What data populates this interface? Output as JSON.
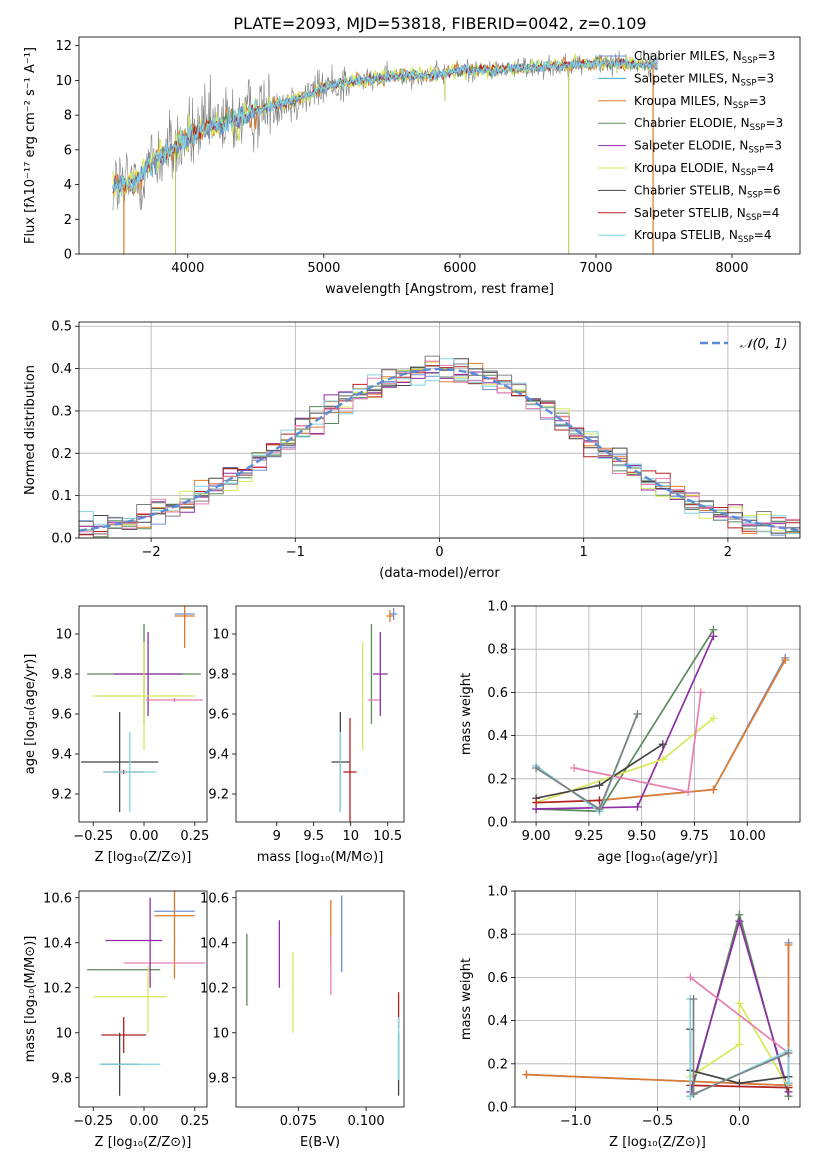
{
  "title": "PLATE=2093, MJD=53818, FIBERID=0042, z=0.109",
  "colors": {
    "Chabrier MILES": "#6f8fd6",
    "Salpeter MILES": "#4aa8c8",
    "Kroupa MILES": "#e07b2e",
    "Chabrier ELODIE": "#5c8a5c",
    "Salpeter ELODIE": "#8e2fa8",
    "Kroupa ELODIE": "#d8e85a",
    "Chabrier STELIB": "#444444",
    "Salpeter STELIB": "#b22222",
    "Kroupa STELIB": "#7fd3e0",
    "pink": "#e87fb0",
    "gray": "#808080",
    "gaussian": "#5b8dd6"
  },
  "chart_data": [
    {
      "id": "spectrum",
      "type": "line",
      "xlabel": "wavelength [Angstrom, rest frame]",
      "ylabel": "Flux [fλ10⁻¹⁷ erg cm⁻² s⁻¹ A⁻¹]",
      "xlim": [
        3200,
        8500
      ],
      "ylim": [
        0,
        12.5
      ],
      "xticks": [
        4000,
        5000,
        6000,
        7000,
        8000
      ],
      "yticks": [
        0,
        2,
        4,
        6,
        8,
        10,
        12
      ],
      "legend_position": "right",
      "legend": [
        {
          "label": "Chabrier MILES, N",
          "sub": "SSP",
          "tail": "=3",
          "color_key": "Chabrier MILES"
        },
        {
          "label": "Salpeter MILES, N",
          "sub": "SSP",
          "tail": "=3",
          "color_key": "Salpeter MILES"
        },
        {
          "label": "Kroupa MILES, N",
          "sub": "SSP",
          "tail": "=3",
          "color_key": "Kroupa MILES"
        },
        {
          "label": "Chabrier ELODIE, N",
          "sub": "SSP",
          "tail": "=3",
          "color_key": "Chabrier ELODIE"
        },
        {
          "label": "Salpeter ELODIE, N",
          "sub": "SSP",
          "tail": "=3",
          "color_key": "Salpeter ELODIE"
        },
        {
          "label": "Kroupa ELODIE, N",
          "sub": "SSP",
          "tail": "=4",
          "color_key": "Kroupa ELODIE"
        },
        {
          "label": "Chabrier STELIB, N",
          "sub": "SSP",
          "tail": "=6",
          "color_key": "Chabrier STELIB"
        },
        {
          "label": "Salpeter STELIB, N",
          "sub": "SSP",
          "tail": "=4",
          "color_key": "Salpeter STELIB"
        },
        {
          "label": "Kroupa STELIB, N",
          "sub": "SSP",
          "tail": "=4",
          "color_key": "Kroupa STELIB"
        }
      ],
      "continuum": {
        "x": [
          3450,
          3550,
          3650,
          3700,
          3800,
          3900,
          4000,
          4100,
          4200,
          4300,
          4400,
          4500,
          4600,
          4700,
          4800,
          4900,
          5000,
          5100,
          5200,
          5300,
          5400,
          5500,
          5600,
          5700,
          5800,
          5900,
          6000,
          6200,
          6400,
          6600,
          6800,
          7000,
          7200,
          7400,
          7450
        ],
        "y": [
          4.0,
          4.0,
          4.3,
          5.0,
          5.6,
          6.1,
          6.7,
          7.1,
          7.4,
          7.6,
          7.9,
          8.2,
          8.5,
          8.7,
          8.9,
          9.2,
          9.6,
          9.8,
          9.9,
          10.0,
          10.1,
          10.2,
          10.3,
          10.3,
          10.3,
          10.4,
          10.6,
          10.6,
          10.7,
          10.8,
          10.9,
          11.0,
          11.0,
          10.9,
          10.9
        ]
      },
      "dips": [
        {
          "x": 3530,
          "y": 0
        },
        {
          "x": 3910,
          "y": 0
        },
        {
          "x": 5890,
          "y": 8.8
        },
        {
          "x": 6800,
          "y": 0
        },
        {
          "x": 7420,
          "y": 0
        }
      ]
    },
    {
      "id": "residuals",
      "type": "bar",
      "xlabel": "(data-model)/error",
      "ylabel": "Normed distribution",
      "xlim": [
        -2.5,
        2.5
      ],
      "ylim": [
        0,
        0.51
      ],
      "xticks": [
        -2,
        -1,
        0,
        1,
        2
      ],
      "xticklabels": [
        "−2",
        "−1",
        "0",
        "1",
        "2"
      ],
      "yticks": [
        0.0,
        0.1,
        0.2,
        0.3,
        0.4,
        0.5
      ],
      "legend_position": "top-right",
      "legend": [
        {
          "label": "𝒩(0, 1)",
          "color_key": "gaussian"
        }
      ],
      "bin_width": 0.1,
      "grid": true
    },
    {
      "id": "age-vs-Z",
      "type": "scatter",
      "xlabel": "Z [log₁₀(Z/Z⊙)]",
      "ylabel": "age  [log₁₀(age/yr)]",
      "xlim": [
        -0.32,
        0.31
      ],
      "ylim": [
        9.06,
        10.14
      ],
      "xticks": [
        -0.25,
        0.0,
        0.25
      ],
      "xticklabels": [
        "−0.25",
        "0.00",
        "0.25"
      ],
      "yticks": [
        9.2,
        9.4,
        9.6,
        9.8,
        10.0
      ],
      "points": [
        {
          "c": "Chabrier MILES",
          "x": 0.2,
          "y": 10.1,
          "xe": 0.05,
          "ye": 0.02
        },
        {
          "c": "Kroupa MILES",
          "x": 0.2,
          "y": 10.09,
          "xe": 0.05,
          "ye": 0.16
        },
        {
          "c": "Chabrier ELODIE",
          "x": 0.0,
          "y": 9.8,
          "xe": 0.28,
          "ye": 0.25
        },
        {
          "c": "Salpeter ELODIE",
          "x": 0.02,
          "y": 9.8,
          "xe": 0.17,
          "ye": 0.21
        },
        {
          "c": "Kroupa ELODIE",
          "x": 0.0,
          "y": 9.69,
          "xe": 0.25,
          "ye": 0.27
        },
        {
          "c": "pink",
          "x": 0.15,
          "y": 9.67,
          "xe": 0.14,
          "ye": 0.01
        },
        {
          "c": "Chabrier STELIB",
          "x": -0.12,
          "y": 9.36,
          "xe": 0.19,
          "ye": 0.25
        },
        {
          "c": "Salpeter STELIB",
          "x": -0.1,
          "y": 9.31,
          "xe": 0.1,
          "ye": 0.01
        },
        {
          "c": "Kroupa STELIB",
          "x": -0.07,
          "y": 9.31,
          "xe": 0.13,
          "ye": 0.2
        }
      ]
    },
    {
      "id": "age-vs-mass",
      "type": "scatter",
      "xlabel": "mass [log₁₀(M/M⊙)]",
      "ylabel": "",
      "xlim": [
        8.45,
        10.72
      ],
      "ylim": [
        9.06,
        10.14
      ],
      "xticks": [
        9.0,
        9.5,
        10.0,
        10.5
      ],
      "yticks": [
        9.2,
        9.4,
        9.6,
        9.8,
        10.0
      ],
      "points": [
        {
          "c": "Chabrier MILES",
          "x": 10.58,
          "y": 10.1,
          "xe": 0.05,
          "ye": 0.03
        },
        {
          "c": "Kroupa MILES",
          "x": 10.53,
          "y": 10.09,
          "xe": 0.05,
          "ye": 0.03
        },
        {
          "c": "Chabrier ELODIE",
          "x": 10.28,
          "y": 9.8,
          "xe": 0.0,
          "ye": 0.25
        },
        {
          "c": "Salpeter ELODIE",
          "x": 10.4,
          "y": 9.8,
          "xe": 0.1,
          "ye": 0.21
        },
        {
          "c": "Kroupa ELODIE",
          "x": 10.16,
          "y": 9.69,
          "xe": 0.0,
          "ye": 0.27
        },
        {
          "c": "pink",
          "x": 10.31,
          "y": 9.67,
          "xe": 0.08,
          "ye": 0.0
        },
        {
          "c": "Chabrier STELIB",
          "x": 9.86,
          "y": 9.36,
          "xe": 0.12,
          "ye": 0.25
        },
        {
          "c": "Salpeter STELIB",
          "x": 9.99,
          "y": 9.31,
          "xe": 0.09,
          "ye": 0.27
        },
        {
          "c": "Kroupa STELIB",
          "x": 9.86,
          "y": 9.31,
          "xe": 0.0,
          "ye": 0.2
        }
      ]
    },
    {
      "id": "massweight-vs-age",
      "type": "line",
      "xlabel": "age  [log₁₀(age/yr)]",
      "ylabel": "mass weight",
      "xlim": [
        8.9,
        10.25
      ],
      "ylim": [
        0,
        1
      ],
      "xticks": [
        9.0,
        9.25,
        9.5,
        9.75,
        10.0
      ],
      "xticklabels": [
        "9.00",
        "9.25",
        "9.50",
        "9.75",
        "10.00"
      ],
      "yticks": [
        0.0,
        0.2,
        0.4,
        0.6,
        0.8,
        1.0
      ],
      "grid": true,
      "series": [
        {
          "c": "Chabrier MILES",
          "x": [
            9.3,
            9.84,
            10.18
          ],
          "y": [
            0.1,
            0.15,
            0.76
          ]
        },
        {
          "c": "Kroupa MILES",
          "x": [
            9.3,
            9.84,
            10.18
          ],
          "y": [
            0.1,
            0.15,
            0.75
          ]
        },
        {
          "c": "Chabrier ELODIE",
          "x": [
            9.0,
            9.3,
            9.84
          ],
          "y": [
            0.06,
            0.05,
            0.89
          ]
        },
        {
          "c": "Salpeter ELODIE",
          "x": [
            9.0,
            9.48,
            9.84
          ],
          "y": [
            0.06,
            0.07,
            0.86
          ]
        },
        {
          "c": "Kroupa ELODIE",
          "x": [
            9.0,
            9.6,
            9.84
          ],
          "y": [
            0.09,
            0.29,
            0.48
          ]
        },
        {
          "c": "pink",
          "x": [
            9.18,
            9.72,
            9.78
          ],
          "y": [
            0.25,
            0.14,
            0.6
          ]
        },
        {
          "c": "Chabrier STELIB",
          "x": [
            9.0,
            9.3,
            9.6
          ],
          "y": [
            0.11,
            0.17,
            0.36
          ]
        },
        {
          "c": "Salpeter STELIB",
          "x": [
            9.0,
            9.3
          ],
          "y": [
            0.09,
            0.1
          ]
        },
        {
          "c": "Kroupa STELIB",
          "x": [
            9.0,
            9.3,
            9.48
          ],
          "y": [
            0.26,
            0.05,
            0.5
          ]
        },
        {
          "c": "gray",
          "x": [
            9.0,
            9.3,
            9.48
          ],
          "y": [
            0.25,
            0.06,
            0.5
          ]
        }
      ]
    },
    {
      "id": "mass-vs-Z",
      "type": "scatter",
      "xlabel": "Z [log₁₀(Z/Z⊙)]",
      "ylabel": "mass [log₁₀(M/M⊙)]",
      "xlim": [
        -0.32,
        0.31
      ],
      "ylim": [
        9.67,
        10.63
      ],
      "xticks": [
        -0.25,
        0.0,
        0.25
      ],
      "xticklabels": [
        "−0.25",
        "0.00",
        "0.25"
      ],
      "yticks": [
        9.8,
        10.0,
        10.2,
        10.4,
        10.6
      ],
      "points": [
        {
          "c": "Chabrier MILES",
          "x": 0.15,
          "y": 10.54,
          "xe": 0.1,
          "ye": 0.0
        },
        {
          "c": "Kroupa MILES",
          "x": 0.15,
          "y": 10.52,
          "xe": 0.1,
          "ye": 0.28
        },
        {
          "c": "Chabrier ELODIE",
          "x": -0.1,
          "y": 10.28,
          "xe": 0.18,
          "ye": 0.0
        },
        {
          "c": "Salpeter ELODIE",
          "x": -0.05,
          "y": 10.41,
          "xe": 0.14,
          "ye": 0.0
        },
        {
          "c": "Kroupa ELODIE",
          "x": -0.07,
          "y": 10.16,
          "xe": 0.18,
          "ye": 0.0
        },
        {
          "c": "pink",
          "x": 0.1,
          "y": 10.31,
          "xe": 0.2,
          "ye": 0.0
        },
        {
          "c": "Chabrier STELIB",
          "x": -0.12,
          "y": 9.86,
          "xe": 0.09,
          "ye": 0.14
        },
        {
          "c": "Salpeter STELIB",
          "x": -0.1,
          "y": 9.99,
          "xe": 0.11,
          "ye": 0.08
        },
        {
          "c": "Kroupa STELIB",
          "x": -0.07,
          "y": 9.86,
          "xe": 0.15,
          "ye": 0.0
        },
        {
          "c": "Salpeter ELODIE",
          "x": 0.03,
          "y": 10.4,
          "xe": 0.0,
          "ye": 0.2
        },
        {
          "c": "Kroupa ELODIE",
          "x": 0.02,
          "y": 10.15,
          "xe": 0.0,
          "ye": 0.15
        }
      ]
    },
    {
      "id": "mass-vs-ebv",
      "type": "scatter",
      "xlabel": "E(B-V)",
      "ylabel": "",
      "xlim": [
        0.052,
        0.114
      ],
      "ylim": [
        9.67,
        10.63
      ],
      "xticks": [
        0.075,
        0.1
      ],
      "xticklabels": [
        "0.075",
        "0.100"
      ],
      "yticks": [
        9.8,
        10.0,
        10.2,
        10.4,
        10.6
      ],
      "points": [
        {
          "c": "Chabrier ELODIE",
          "x": 0.056,
          "y": 10.28,
          "xe": 0.0,
          "ye": 0.16
        },
        {
          "c": "Salpeter ELODIE",
          "x": 0.068,
          "y": 10.35,
          "xe": 0.0,
          "ye": 0.15
        },
        {
          "c": "Kroupa ELODIE",
          "x": 0.073,
          "y": 10.18,
          "xe": 0.0,
          "ye": 0.18
        },
        {
          "c": "Kroupa MILES",
          "x": 0.087,
          "y": 10.45,
          "xe": 0.0,
          "ye": 0.14
        },
        {
          "c": "pink",
          "x": 0.087,
          "y": 10.3,
          "xe": 0.0,
          "ye": 0.13
        },
        {
          "c": "Chabrier MILES",
          "x": 0.091,
          "y": 10.44,
          "xe": 0.0,
          "ye": 0.17
        },
        {
          "c": "Salpeter STELIB",
          "x": 0.112,
          "y": 10.1,
          "xe": 0.0,
          "ye": 0.08
        },
        {
          "c": "Chabrier STELIB",
          "x": 0.112,
          "y": 9.86,
          "xe": 0.0,
          "ye": 0.14
        },
        {
          "c": "Kroupa STELIB",
          "x": 0.112,
          "y": 9.93,
          "xe": 0.0,
          "ye": 0.14
        }
      ]
    },
    {
      "id": "massweight-vs-Z",
      "type": "line",
      "xlabel": "Z [log₁₀(Z/Z⊙)]",
      "ylabel": "mass weight",
      "xlim": [
        -1.37,
        0.37
      ],
      "ylim": [
        0,
        1
      ],
      "xticks": [
        -1.0,
        -0.5,
        0.0
      ],
      "xticklabels": [
        "−1.0",
        "−0.5",
        "0.0"
      ],
      "yticks": [
        0.0,
        0.2,
        0.4,
        0.6,
        0.8,
        1.0
      ],
      "grid": true,
      "series": [
        {
          "c": "Chabrier MILES",
          "x": [
            -1.3,
            0.3,
            0.3
          ],
          "y": [
            0.15,
            0.1,
            0.76
          ]
        },
        {
          "c": "Kroupa MILES",
          "x": [
            -1.3,
            0.3,
            0.3
          ],
          "y": [
            0.15,
            0.1,
            0.75
          ]
        },
        {
          "c": "Chabrier ELODIE",
          "x": [
            -0.3,
            0.0,
            0.3
          ],
          "y": [
            0.05,
            0.89,
            0.05
          ]
        },
        {
          "c": "Salpeter ELODIE",
          "x": [
            -0.3,
            0.0,
            0.3
          ],
          "y": [
            0.07,
            0.86,
            0.07
          ]
        },
        {
          "c": "Kroupa ELODIE",
          "x": [
            -0.3,
            0.0,
            0.0,
            0.3
          ],
          "y": [
            0.14,
            0.29,
            0.48,
            0.09
          ]
        },
        {
          "c": "pink",
          "x": [
            -0.3,
            0.3,
            0.3
          ],
          "y": [
            0.6,
            0.25,
            0.14
          ]
        },
        {
          "c": "Chabrier STELIB",
          "x": [
            -0.3,
            -0.3,
            0.0,
            0.3,
            0.3
          ],
          "y": [
            0.36,
            0.17,
            0.11,
            0.14,
            0.11
          ]
        },
        {
          "c": "Salpeter STELIB",
          "x": [
            -0.3,
            0.3
          ],
          "y": [
            0.1,
            0.09
          ]
        },
        {
          "c": "Kroupa STELIB",
          "x": [
            -0.3,
            -0.3,
            0.3,
            0.3
          ],
          "y": [
            0.5,
            0.05,
            0.26,
            0.11
          ]
        },
        {
          "c": "gray",
          "x": [
            -0.28,
            -0.28,
            0.3
          ],
          "y": [
            0.5,
            0.06,
            0.25
          ]
        }
      ]
    }
  ]
}
